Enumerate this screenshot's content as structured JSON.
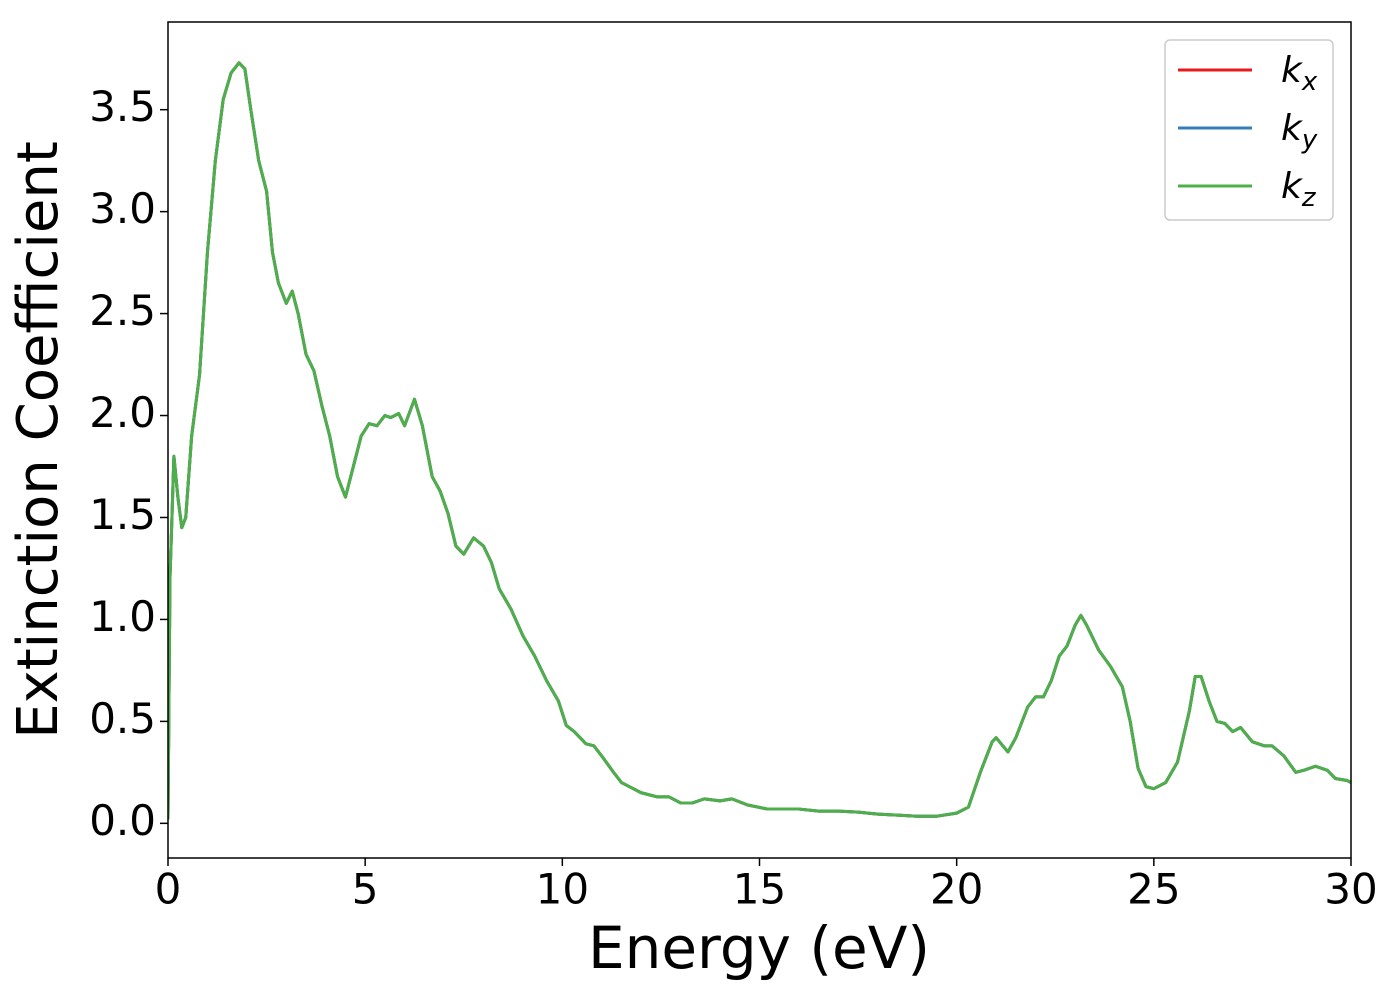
{
  "chart_data": {
    "type": "line",
    "xlabel": "Energy (eV)",
    "ylabel": "Extinction Coefficient",
    "x": [
      0.0,
      0.05,
      0.15,
      0.25,
      0.35,
      0.45,
      0.6,
      0.8,
      1.0,
      1.2,
      1.4,
      1.6,
      1.8,
      1.95,
      2.1,
      2.3,
      2.5,
      2.65,
      2.8,
      3.0,
      3.15,
      3.3,
      3.5,
      3.7,
      3.9,
      4.1,
      4.3,
      4.5,
      4.7,
      4.9,
      5.1,
      5.3,
      5.5,
      5.65,
      5.85,
      6.0,
      6.25,
      6.45,
      6.7,
      6.9,
      7.1,
      7.3,
      7.5,
      7.75,
      8.0,
      8.2,
      8.4,
      8.7,
      9.0,
      9.3,
      9.6,
      9.9,
      10.1,
      10.3,
      10.6,
      10.8,
      11.0,
      11.3,
      11.5,
      11.8,
      12.0,
      12.4,
      12.7,
      13.0,
      13.3,
      13.6,
      14.0,
      14.3,
      14.7,
      15.2,
      16.0,
      16.5,
      17.0,
      17.5,
      18.0,
      18.5,
      19.0,
      19.5,
      20.0,
      20.3,
      20.6,
      20.9,
      21.0,
      21.3,
      21.5,
      21.8,
      22.0,
      22.2,
      22.4,
      22.6,
      22.8,
      23.0,
      23.15,
      23.3,
      23.6,
      23.9,
      24.2,
      24.4,
      24.6,
      24.8,
      25.0,
      25.3,
      25.6,
      25.9,
      26.05,
      26.2,
      26.4,
      26.6,
      26.8,
      27.0,
      27.2,
      27.5,
      27.8,
      28.0,
      28.3,
      28.6,
      28.8,
      29.1,
      29.4,
      29.6,
      29.9,
      30.0
    ],
    "series": [
      {
        "name": "kx",
        "color": "#e41a1c",
        "values": [
          0.02,
          1.2,
          1.8,
          1.6,
          1.45,
          1.5,
          1.9,
          2.2,
          2.8,
          3.25,
          3.55,
          3.68,
          3.73,
          3.7,
          3.5,
          3.25,
          3.1,
          2.8,
          2.65,
          2.55,
          2.61,
          2.5,
          2.3,
          2.22,
          2.05,
          1.9,
          1.7,
          1.6,
          1.75,
          1.9,
          1.96,
          1.95,
          2.0,
          1.99,
          2.01,
          1.95,
          2.08,
          1.95,
          1.7,
          1.63,
          1.52,
          1.36,
          1.32,
          1.4,
          1.36,
          1.28,
          1.15,
          1.05,
          0.92,
          0.82,
          0.7,
          0.6,
          0.48,
          0.45,
          0.39,
          0.38,
          0.33,
          0.25,
          0.2,
          0.17,
          0.15,
          0.13,
          0.13,
          0.1,
          0.1,
          0.12,
          0.11,
          0.12,
          0.09,
          0.07,
          0.07,
          0.06,
          0.06,
          0.055,
          0.045,
          0.04,
          0.035,
          0.035,
          0.05,
          0.08,
          0.25,
          0.4,
          0.42,
          0.35,
          0.42,
          0.57,
          0.62,
          0.62,
          0.7,
          0.82,
          0.87,
          0.97,
          1.02,
          0.97,
          0.85,
          0.77,
          0.67,
          0.5,
          0.27,
          0.18,
          0.17,
          0.2,
          0.3,
          0.55,
          0.72,
          0.72,
          0.6,
          0.5,
          0.49,
          0.45,
          0.47,
          0.4,
          0.38,
          0.38,
          0.33,
          0.25,
          0.26,
          0.28,
          0.26,
          0.22,
          0.21,
          0.2
        ]
      },
      {
        "name": "ky",
        "color": "#377eb8",
        "values": [
          0.02,
          1.2,
          1.8,
          1.6,
          1.45,
          1.5,
          1.9,
          2.2,
          2.8,
          3.25,
          3.55,
          3.68,
          3.73,
          3.7,
          3.5,
          3.25,
          3.1,
          2.8,
          2.65,
          2.55,
          2.61,
          2.5,
          2.3,
          2.22,
          2.05,
          1.9,
          1.7,
          1.6,
          1.75,
          1.9,
          1.96,
          1.95,
          2.0,
          1.99,
          2.01,
          1.95,
          2.08,
          1.95,
          1.7,
          1.63,
          1.52,
          1.36,
          1.32,
          1.4,
          1.36,
          1.28,
          1.15,
          1.05,
          0.92,
          0.82,
          0.7,
          0.6,
          0.48,
          0.45,
          0.39,
          0.38,
          0.33,
          0.25,
          0.2,
          0.17,
          0.15,
          0.13,
          0.13,
          0.1,
          0.1,
          0.12,
          0.11,
          0.12,
          0.09,
          0.07,
          0.07,
          0.06,
          0.06,
          0.055,
          0.045,
          0.04,
          0.035,
          0.035,
          0.05,
          0.08,
          0.25,
          0.4,
          0.42,
          0.35,
          0.42,
          0.57,
          0.62,
          0.62,
          0.7,
          0.82,
          0.87,
          0.97,
          1.02,
          0.97,
          0.85,
          0.77,
          0.67,
          0.5,
          0.27,
          0.18,
          0.17,
          0.2,
          0.3,
          0.55,
          0.72,
          0.72,
          0.6,
          0.5,
          0.49,
          0.45,
          0.47,
          0.4,
          0.38,
          0.38,
          0.33,
          0.25,
          0.26,
          0.28,
          0.26,
          0.22,
          0.21,
          0.2
        ]
      },
      {
        "name": "kz",
        "color": "#4daf4a",
        "values": [
          0.02,
          1.2,
          1.8,
          1.6,
          1.45,
          1.5,
          1.9,
          2.2,
          2.8,
          3.25,
          3.55,
          3.68,
          3.73,
          3.7,
          3.5,
          3.25,
          3.1,
          2.8,
          2.65,
          2.55,
          2.61,
          2.5,
          2.3,
          2.22,
          2.05,
          1.9,
          1.7,
          1.6,
          1.75,
          1.9,
          1.96,
          1.95,
          2.0,
          1.99,
          2.01,
          1.95,
          2.08,
          1.95,
          1.7,
          1.63,
          1.52,
          1.36,
          1.32,
          1.4,
          1.36,
          1.28,
          1.15,
          1.05,
          0.92,
          0.82,
          0.7,
          0.6,
          0.48,
          0.45,
          0.39,
          0.38,
          0.33,
          0.25,
          0.2,
          0.17,
          0.15,
          0.13,
          0.13,
          0.1,
          0.1,
          0.12,
          0.11,
          0.12,
          0.09,
          0.07,
          0.07,
          0.06,
          0.06,
          0.055,
          0.045,
          0.04,
          0.035,
          0.035,
          0.05,
          0.08,
          0.25,
          0.4,
          0.42,
          0.35,
          0.42,
          0.57,
          0.62,
          0.62,
          0.7,
          0.82,
          0.87,
          0.97,
          1.02,
          0.97,
          0.85,
          0.77,
          0.67,
          0.5,
          0.27,
          0.18,
          0.17,
          0.2,
          0.3,
          0.55,
          0.72,
          0.72,
          0.6,
          0.5,
          0.49,
          0.45,
          0.47,
          0.4,
          0.38,
          0.38,
          0.33,
          0.25,
          0.26,
          0.28,
          0.26,
          0.22,
          0.21,
          0.2
        ]
      }
    ],
    "xlim": [
      0,
      30
    ],
    "xticks": [
      0,
      5,
      10,
      15,
      20,
      25,
      30
    ],
    "ylim": [
      -0.17,
      3.93
    ],
    "yticks": [
      {
        "value": 0,
        "label": "0.0"
      },
      0.5,
      {
        "value": 1,
        "label": "1.0"
      },
      1.5,
      {
        "value": 2,
        "label": "2.0"
      },
      2.5,
      {
        "value": 3,
        "label": "3.0"
      },
      3.5
    ],
    "legend": "upper right",
    "grid": false
  }
}
